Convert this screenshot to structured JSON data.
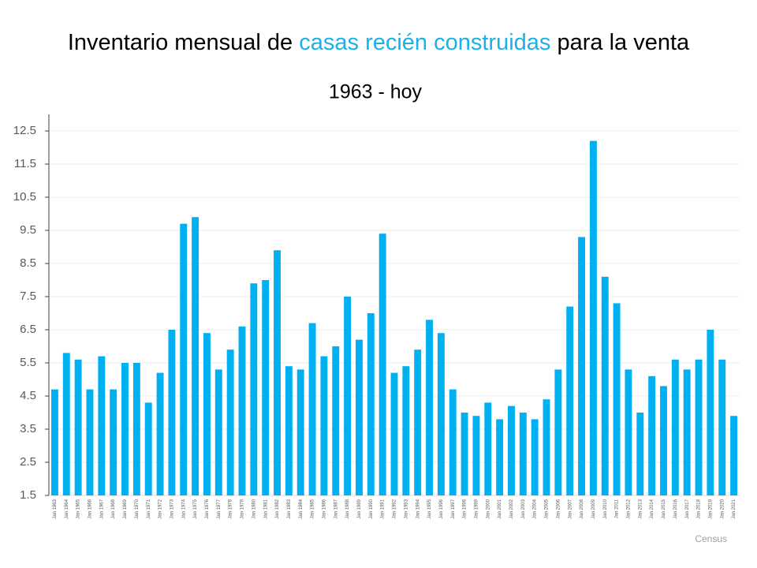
{
  "chart_data": {
    "type": "bar",
    "title": [
      "Inventario mensual de ",
      "casas recién construidas",
      " para la venta"
    ],
    "title_highlight": 1,
    "title_highlight_color": "#1ab0e8",
    "subtitle": "1963 - hoy",
    "source": "Census",
    "categories": [
      "Jan 1963",
      "Jan 1964",
      "Jan 1965",
      "Jan 1966",
      "Jan 1967",
      "Jan 1968",
      "Jan 1969",
      "Jan 1970",
      "Jan 1971",
      "Jan 1972",
      "Jan 1973",
      "Jan 1974",
      "Jan 1975",
      "Jan 1976",
      "Jan 1977",
      "Jan 1978",
      "Jan 1979",
      "Jan 1980",
      "Jan 1981",
      "Jan 1982",
      "Jan 1983",
      "Jan 1984",
      "Jan 1985",
      "Jan 1986",
      "Jan 1987",
      "Jan 1988",
      "Jan 1989",
      "Jan 1990",
      "Jan 1991",
      "Jan 1992",
      "Jan 1993",
      "Jan 1994",
      "Jan 1995",
      "Jan 1996",
      "Jan 1997",
      "Jan 1998",
      "Jan 1999",
      "Jan 2000",
      "Jan 2001",
      "Jan 2002",
      "Jan 2003",
      "Jan 2004",
      "Jan 2005",
      "Jan 2006",
      "Jan 2007",
      "Jan 2008",
      "Jan 2009",
      "Jan 2010",
      "Jan 2011",
      "Jan 2012",
      "Jan 2013",
      "Jan 2014",
      "Jan 2015",
      "Jan 2016",
      "Jan 2017",
      "Jan 2018",
      "Jan 2019",
      "Jan 2020",
      "Jan 2021"
    ],
    "values": [
      4.7,
      5.8,
      5.6,
      4.7,
      5.7,
      4.7,
      5.5,
      5.5,
      4.3,
      5.2,
      6.5,
      9.7,
      9.9,
      6.4,
      5.3,
      5.9,
      6.6,
      7.9,
      8.0,
      8.9,
      5.4,
      5.3,
      6.7,
      5.7,
      6.0,
      7.5,
      6.2,
      7.0,
      9.4,
      5.2,
      5.4,
      5.9,
      6.8,
      6.4,
      4.7,
      4.0,
      3.9,
      4.3,
      3.8,
      4.2,
      4.0,
      3.8,
      4.4,
      5.3,
      7.2,
      9.3,
      12.2,
      8.1,
      7.3,
      5.3,
      4.0,
      5.1,
      4.8,
      5.6,
      5.3,
      5.6,
      6.5,
      5.6,
      3.9
    ],
    "color": "#00b0f0",
    "ylim": [
      1.5,
      13
    ],
    "yticks": [
      1.5,
      2.5,
      3.5,
      4.5,
      5.5,
      6.5,
      7.5,
      8.5,
      9.5,
      10.5,
      11.5,
      12.5
    ],
    "grid": true
  }
}
